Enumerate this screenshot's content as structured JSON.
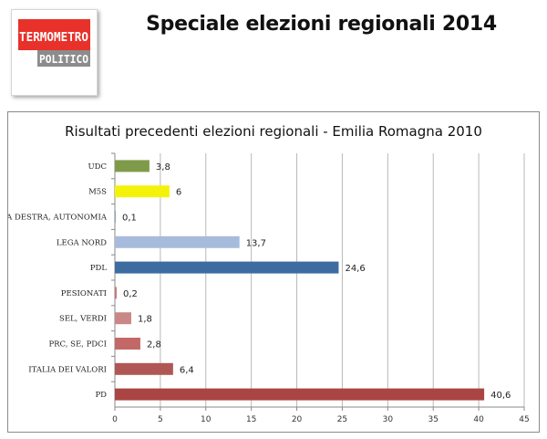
{
  "header": {
    "title": "Speciale elezioni regionali 2014",
    "logo": {
      "line1": "TERMOMETRO",
      "line2": "POLITICO",
      "line1_bg": "#e8312a",
      "line2_bg": "#8c8c8c"
    }
  },
  "chart_data": {
    "type": "bar",
    "orientation": "horizontal",
    "title": "Risultati precedenti elezioni regionali - Emilia Romagna 2010",
    "xlabel": "",
    "ylabel": "",
    "xlim": [
      0,
      45
    ],
    "ticks": [
      0,
      5,
      10,
      15,
      20,
      25,
      30,
      35,
      40,
      45
    ],
    "grid": true,
    "categories": [
      "UDC",
      "M5S",
      "LA DESTRA, AUTONOMIA",
      "LEGA NORD",
      "PDL",
      "PESIONATI",
      "SEL, VERDI",
      "PRC, SE, PDCI",
      "ITALIA DEI VALORI",
      "PD"
    ],
    "values": [
      3.8,
      6,
      0.1,
      13.7,
      24.6,
      0.2,
      1.8,
      2.8,
      6.4,
      40.6
    ],
    "value_labels": [
      "3,8",
      "6",
      "0,1",
      "13,7",
      "24,6",
      "0,2",
      "1,8",
      "2,8",
      "6,4",
      "40,6"
    ],
    "colors": [
      "#7f9b4a",
      "#f5f20a",
      "#8fa0c2",
      "#a7bcdc",
      "#3d6da0",
      "#c27e7b",
      "#c98886",
      "#c26967",
      "#b05755",
      "#ab4543"
    ]
  }
}
